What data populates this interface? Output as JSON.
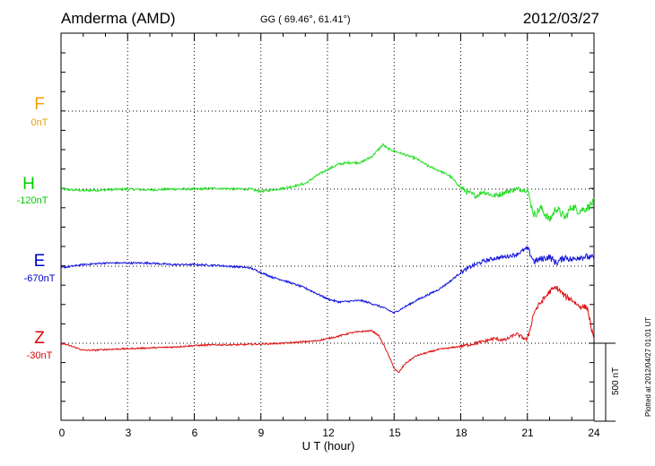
{
  "header": {
    "station": "Amderma (AMD)",
    "coords": "GG ( 69.46°,  61.41°)",
    "date": "2012/03/27"
  },
  "labels": {
    "F": {
      "letter": "F",
      "base": "0nT",
      "color": "#f0a000"
    },
    "H": {
      "letter": "H",
      "base": "-120nT",
      "color": "#00cc00"
    },
    "E": {
      "letter": "E",
      "base": "-670nT",
      "color": "#0000cc"
    },
    "Z": {
      "letter": "Z",
      "base": "-30nT",
      "color": "#dd0000"
    }
  },
  "xaxis": {
    "label": "U T (hour)",
    "ticks": [
      "0",
      "3",
      "6",
      "9",
      "12",
      "15",
      "18",
      "21",
      "24"
    ]
  },
  "scale_bar": "500 nT",
  "plotted": "Plotted at 2012/04/27 01:01  UT",
  "chart_data": {
    "type": "line",
    "title": "Amderma (AMD)",
    "xlabel": "U T (hour)",
    "xlim": [
      0,
      24
    ],
    "scale_nT": 500,
    "grid": true,
    "series": [
      {
        "name": "H",
        "color": "#22dd22",
        "baseline_nT": -120,
        "x": [
          0,
          1,
          2,
          3,
          4,
          5,
          6,
          7,
          8,
          8.5,
          9,
          9.5,
          10,
          10.5,
          11,
          11.5,
          12,
          12.5,
          13,
          13.5,
          14,
          14.5,
          14.7,
          15,
          15.5,
          16,
          16.5,
          17,
          17.5,
          18,
          18.3,
          18.7,
          19,
          19.5,
          20,
          20.5,
          21,
          21.3,
          21.6,
          22,
          22.3,
          22.7,
          23,
          23.3,
          23.7,
          24
        ],
        "y": [
          0,
          -10,
          -5,
          0,
          -5,
          0,
          0,
          5,
          0,
          0,
          -15,
          -5,
          5,
          20,
          35,
          85,
          125,
          160,
          170,
          170,
          210,
          285,
          260,
          245,
          220,
          195,
          150,
          120,
          85,
          10,
          -20,
          -45,
          -15,
          -45,
          -20,
          0,
          -5,
          -170,
          -120,
          -200,
          -120,
          -185,
          -110,
          -140,
          -120,
          -80
        ],
        "jitter": 15
      },
      {
        "name": "E",
        "color": "#1111dd",
        "baseline_nT": -670,
        "x": [
          0,
          1,
          2,
          3,
          4,
          5,
          6,
          7,
          8,
          8.5,
          9,
          9.5,
          10,
          10.5,
          11,
          11.5,
          12,
          12.5,
          13,
          13.5,
          14,
          14.5,
          15,
          15.5,
          16,
          16.5,
          17,
          17.5,
          18,
          18.5,
          19,
          19.5,
          20,
          20.5,
          21,
          21.3,
          21.6,
          22,
          22.3,
          22.7,
          23,
          23.3,
          23.7,
          24
        ],
        "y": [
          -10,
          10,
          20,
          20,
          20,
          10,
          10,
          5,
          -5,
          -10,
          -40,
          -70,
          -90,
          -115,
          -140,
          -175,
          -210,
          -230,
          -225,
          -220,
          -240,
          -265,
          -300,
          -260,
          -220,
          -185,
          -150,
          -100,
          -40,
          0,
          30,
          50,
          60,
          75,
          115,
          30,
          45,
          60,
          20,
          60,
          40,
          60,
          60,
          50
        ],
        "jitter": 12
      },
      {
        "name": "Z",
        "color": "#dd1111",
        "baseline_nT": -30,
        "x": [
          0,
          0.5,
          1,
          1.5,
          2,
          3,
          4,
          5,
          6,
          7,
          8,
          9,
          10,
          10.5,
          11,
          11.5,
          12,
          12.5,
          13,
          13.5,
          14,
          14.3,
          14.6,
          15,
          15.2,
          15.5,
          16,
          16.5,
          17,
          17.5,
          18,
          18.5,
          19,
          19.5,
          20,
          20.5,
          21,
          21.3,
          21.6,
          22,
          22.3,
          22.7,
          23,
          23.3,
          23.7,
          24
        ],
        "y": [
          0,
          -20,
          -45,
          -45,
          -40,
          -35,
          -30,
          -25,
          -15,
          -10,
          -10,
          -5,
          0,
          5,
          10,
          15,
          30,
          45,
          65,
          75,
          80,
          50,
          -30,
          -160,
          -190,
          -130,
          -80,
          -60,
          -40,
          -30,
          -20,
          -5,
          10,
          30,
          20,
          60,
          20,
          200,
          260,
          330,
          360,
          300,
          280,
          240,
          230,
          10
        ],
        "jitter": 10
      }
    ]
  }
}
